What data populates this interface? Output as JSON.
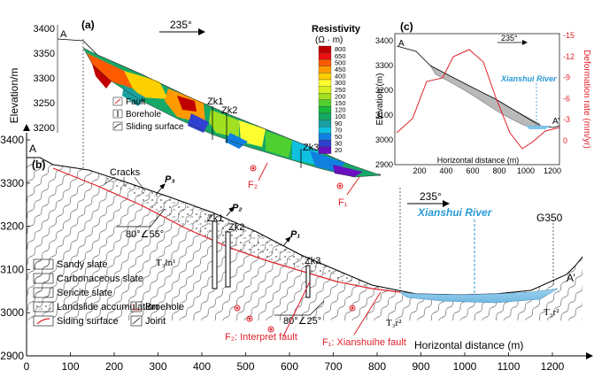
{
  "panels": {
    "a": "(a)",
    "b": "(b)",
    "c": "(c)"
  },
  "main": {
    "ylabel": "Elevation/m",
    "xlabel": "Horizontal distance (m)",
    "y_ticks": [
      "3400",
      "3300",
      "3200",
      "3100",
      "3000",
      "2900"
    ],
    "x_ticks": [
      "0",
      "100",
      "200",
      "300",
      "400",
      "500",
      "600",
      "700",
      "800",
      "900",
      "1000",
      "1100",
      "1200"
    ],
    "direction": "235°",
    "point_start": "A",
    "point_end": "A’",
    "river": "Xianshui River",
    "road": "G350",
    "cracks": "Cracks",
    "strata_left": "T₃ln¹",
    "strata_right": "T₃r²",
    "strata_right2": "T₃r²",
    "dip_upper": "80°∠55°",
    "dip_lower": "80°∠25°",
    "zk1": "Zk1",
    "zk2": "Zk2",
    "zk3": "Zk3",
    "p1": "P₁",
    "p2": "P₂",
    "p3": "P₃",
    "f1_label": "F₁: Xianshuihe fault",
    "f2_label": "F₂: Interpret fault"
  },
  "legend_b": {
    "items": [
      "Sandy slate",
      "Carbonaceous slate",
      "Sericite slate",
      "Landslide accumulation",
      "Siding surface",
      "Broehole",
      "Joint"
    ]
  },
  "panel_a": {
    "direction": "235°",
    "point": "A",
    "zk1": "Zk1",
    "zk2": "Zk2",
    "zk3": "Zk3",
    "f1": "F₁",
    "f2": "F₂",
    "legend": [
      "Fault",
      "Borehole",
      "Sliding surface"
    ],
    "resistivity_title": "Resistivity",
    "resistivity_unit": "(Ω · m)",
    "colorbar": [
      {
        "value": "800",
        "color": "#c00000"
      },
      {
        "value": "650",
        "color": "#e81010"
      },
      {
        "value": "500",
        "color": "#ff5a00"
      },
      {
        "value": "450",
        "color": "#ff9a00"
      },
      {
        "value": "400",
        "color": "#ffd000"
      },
      {
        "value": "300",
        "color": "#ffff30"
      },
      {
        "value": "250",
        "color": "#d8f020"
      },
      {
        "value": "200",
        "color": "#a0e020"
      },
      {
        "value": "150",
        "color": "#50d030"
      },
      {
        "value": "120",
        "color": "#18b83a"
      },
      {
        "value": "100",
        "color": "#16a866"
      },
      {
        "value": "90",
        "color": "#1aa0a0"
      },
      {
        "value": "70",
        "color": "#10c0e0"
      },
      {
        "value": "50",
        "color": "#1080e0"
      },
      {
        "value": "30",
        "color": "#3040d0"
      },
      {
        "value": "20",
        "color": "#6a10c0"
      }
    ]
  },
  "panel_c": {
    "ylabel_left": "Elevation (m)",
    "ylabel_right": "Deformation rate (mm/yr)",
    "xlabel": "Horizontal distance (m)",
    "y_ticks": [
      "3400",
      "3300",
      "3200",
      "3100",
      "3000",
      "2900"
    ],
    "x_ticks": [
      "200",
      "400",
      "600",
      "800",
      "1000",
      "1200"
    ],
    "right_ticks": [
      "-15",
      "-12",
      "-9",
      "-6",
      "-3",
      "0"
    ],
    "direction": "235°",
    "point_start": "A",
    "point_end": "A’",
    "river": "Xianshui River"
  }
}
